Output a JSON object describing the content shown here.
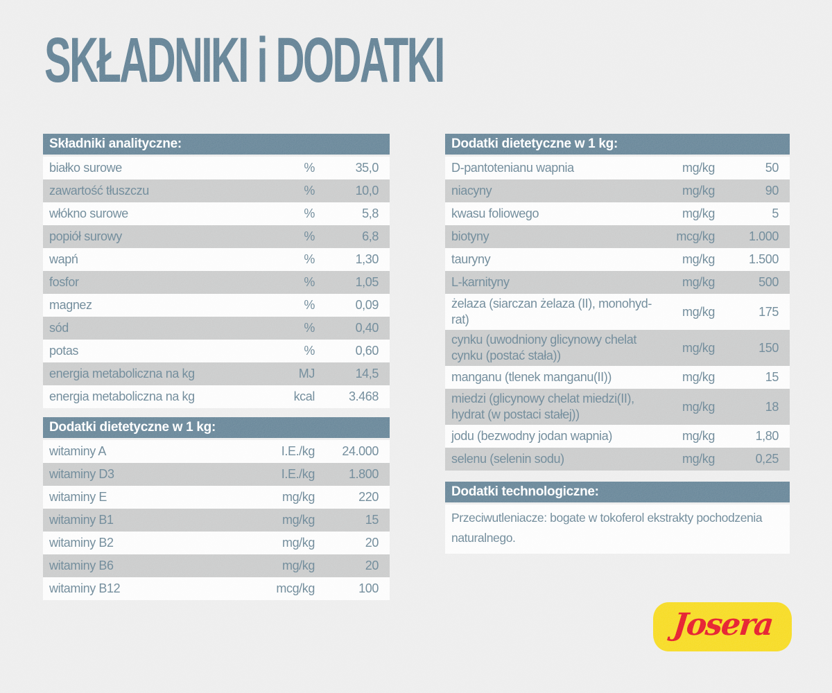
{
  "title": "SKŁADNIKI i DODATKI",
  "colors": {
    "page_bg": "#ececec",
    "header_bg": "#5b7c90",
    "row_white": "#fcfcfc",
    "row_gray": "#c6c7c7",
    "text": "#5f7d8e",
    "title": "#54768b",
    "logo_bg": "#f6d80e",
    "logo_text": "#e30617"
  },
  "tables": {
    "analytical": {
      "header": "Składniki analityczne:",
      "rows": [
        {
          "label": "białko surowe",
          "unit": "%",
          "value": "35,0"
        },
        {
          "label": "zawartość tłuszczu",
          "unit": "%",
          "value": "10,0"
        },
        {
          "label": "włókno surowe",
          "unit": "%",
          "value": "5,8"
        },
        {
          "label": "popiół surowy",
          "unit": "%",
          "value": "6,8"
        },
        {
          "label": "wapń",
          "unit": "%",
          "value": "1,30"
        },
        {
          "label": "fosfor",
          "unit": "%",
          "value": "1,05"
        },
        {
          "label": "magnez",
          "unit": "%",
          "value": "0,09"
        },
        {
          "label": "sód",
          "unit": "%",
          "value": "0,40"
        },
        {
          "label": "potas",
          "unit": "%",
          "value": "0,60"
        },
        {
          "label": "energia metaboliczna na kg",
          "unit": "MJ",
          "value": "14,5"
        },
        {
          "label": "energia metaboliczna na kg",
          "unit": "kcal",
          "value": "3.468"
        }
      ]
    },
    "vitamins": {
      "header": "Dodatki dietetyczne w 1 kg:",
      "rows": [
        {
          "label": "witaminy A",
          "unit": "I.E./kg",
          "value": "24.000"
        },
        {
          "label": "witaminy D3",
          "unit": "I.E./kg",
          "value": "1.800"
        },
        {
          "label": "witaminy E",
          "unit": "mg/kg",
          "value": "220"
        },
        {
          "label": "witaminy B1",
          "unit": "mg/kg",
          "value": "15"
        },
        {
          "label": "witaminy B2",
          "unit": "mg/kg",
          "value": "20"
        },
        {
          "label": "witaminy B6",
          "unit": "mg/kg",
          "value": "20"
        },
        {
          "label": "witaminy B12",
          "unit": "mcg/kg",
          "value": "100"
        }
      ]
    },
    "minerals": {
      "header": "Dodatki dietetyczne w 1 kg:",
      "rows": [
        {
          "label": "D-pantotenianu wapnia",
          "unit": "mg/kg",
          "value": "50"
        },
        {
          "label": "niacyny",
          "unit": "mg/kg",
          "value": "90"
        },
        {
          "label": "kwasu foliowego",
          "unit": "mg/kg",
          "value": "5"
        },
        {
          "label": "biotyny",
          "unit": "mcg/kg",
          "value": "1.000"
        },
        {
          "label": "tauryny",
          "unit": "mg/kg",
          "value": "1.500"
        },
        {
          "label": "L-karnityny",
          "unit": "mg/kg",
          "value": "500"
        },
        {
          "label": "żelaza (siarczan żelaza (II), monohyd-\nrat)",
          "unit": "mg/kg",
          "value": "175"
        },
        {
          "label": "cynku (uwodniony glicynowy chelat\ncynku (postać stała))",
          "unit": "mg/kg",
          "value": "150"
        },
        {
          "label": "manganu (tlenek manganu(II))",
          "unit": "mg/kg",
          "value": "15"
        },
        {
          "label": "miedzi (glicynowy chelat miedzi(II),\nhydrat (w postaci stałej))",
          "unit": "mg/kg",
          "value": "18"
        },
        {
          "label": "jodu (bezwodny jodan wapnia)",
          "unit": "mg/kg",
          "value": "1,80"
        },
        {
          "label": "selenu (selenin sodu)",
          "unit": "mg/kg",
          "value": "0,25"
        }
      ]
    },
    "technological": {
      "header": "Dodatki technologiczne:",
      "text": "Przeciwutleniacze: bogate w tokoferol ekstrakty pochodzenia\nnaturalnego."
    }
  },
  "logo": {
    "text": "Josera"
  }
}
